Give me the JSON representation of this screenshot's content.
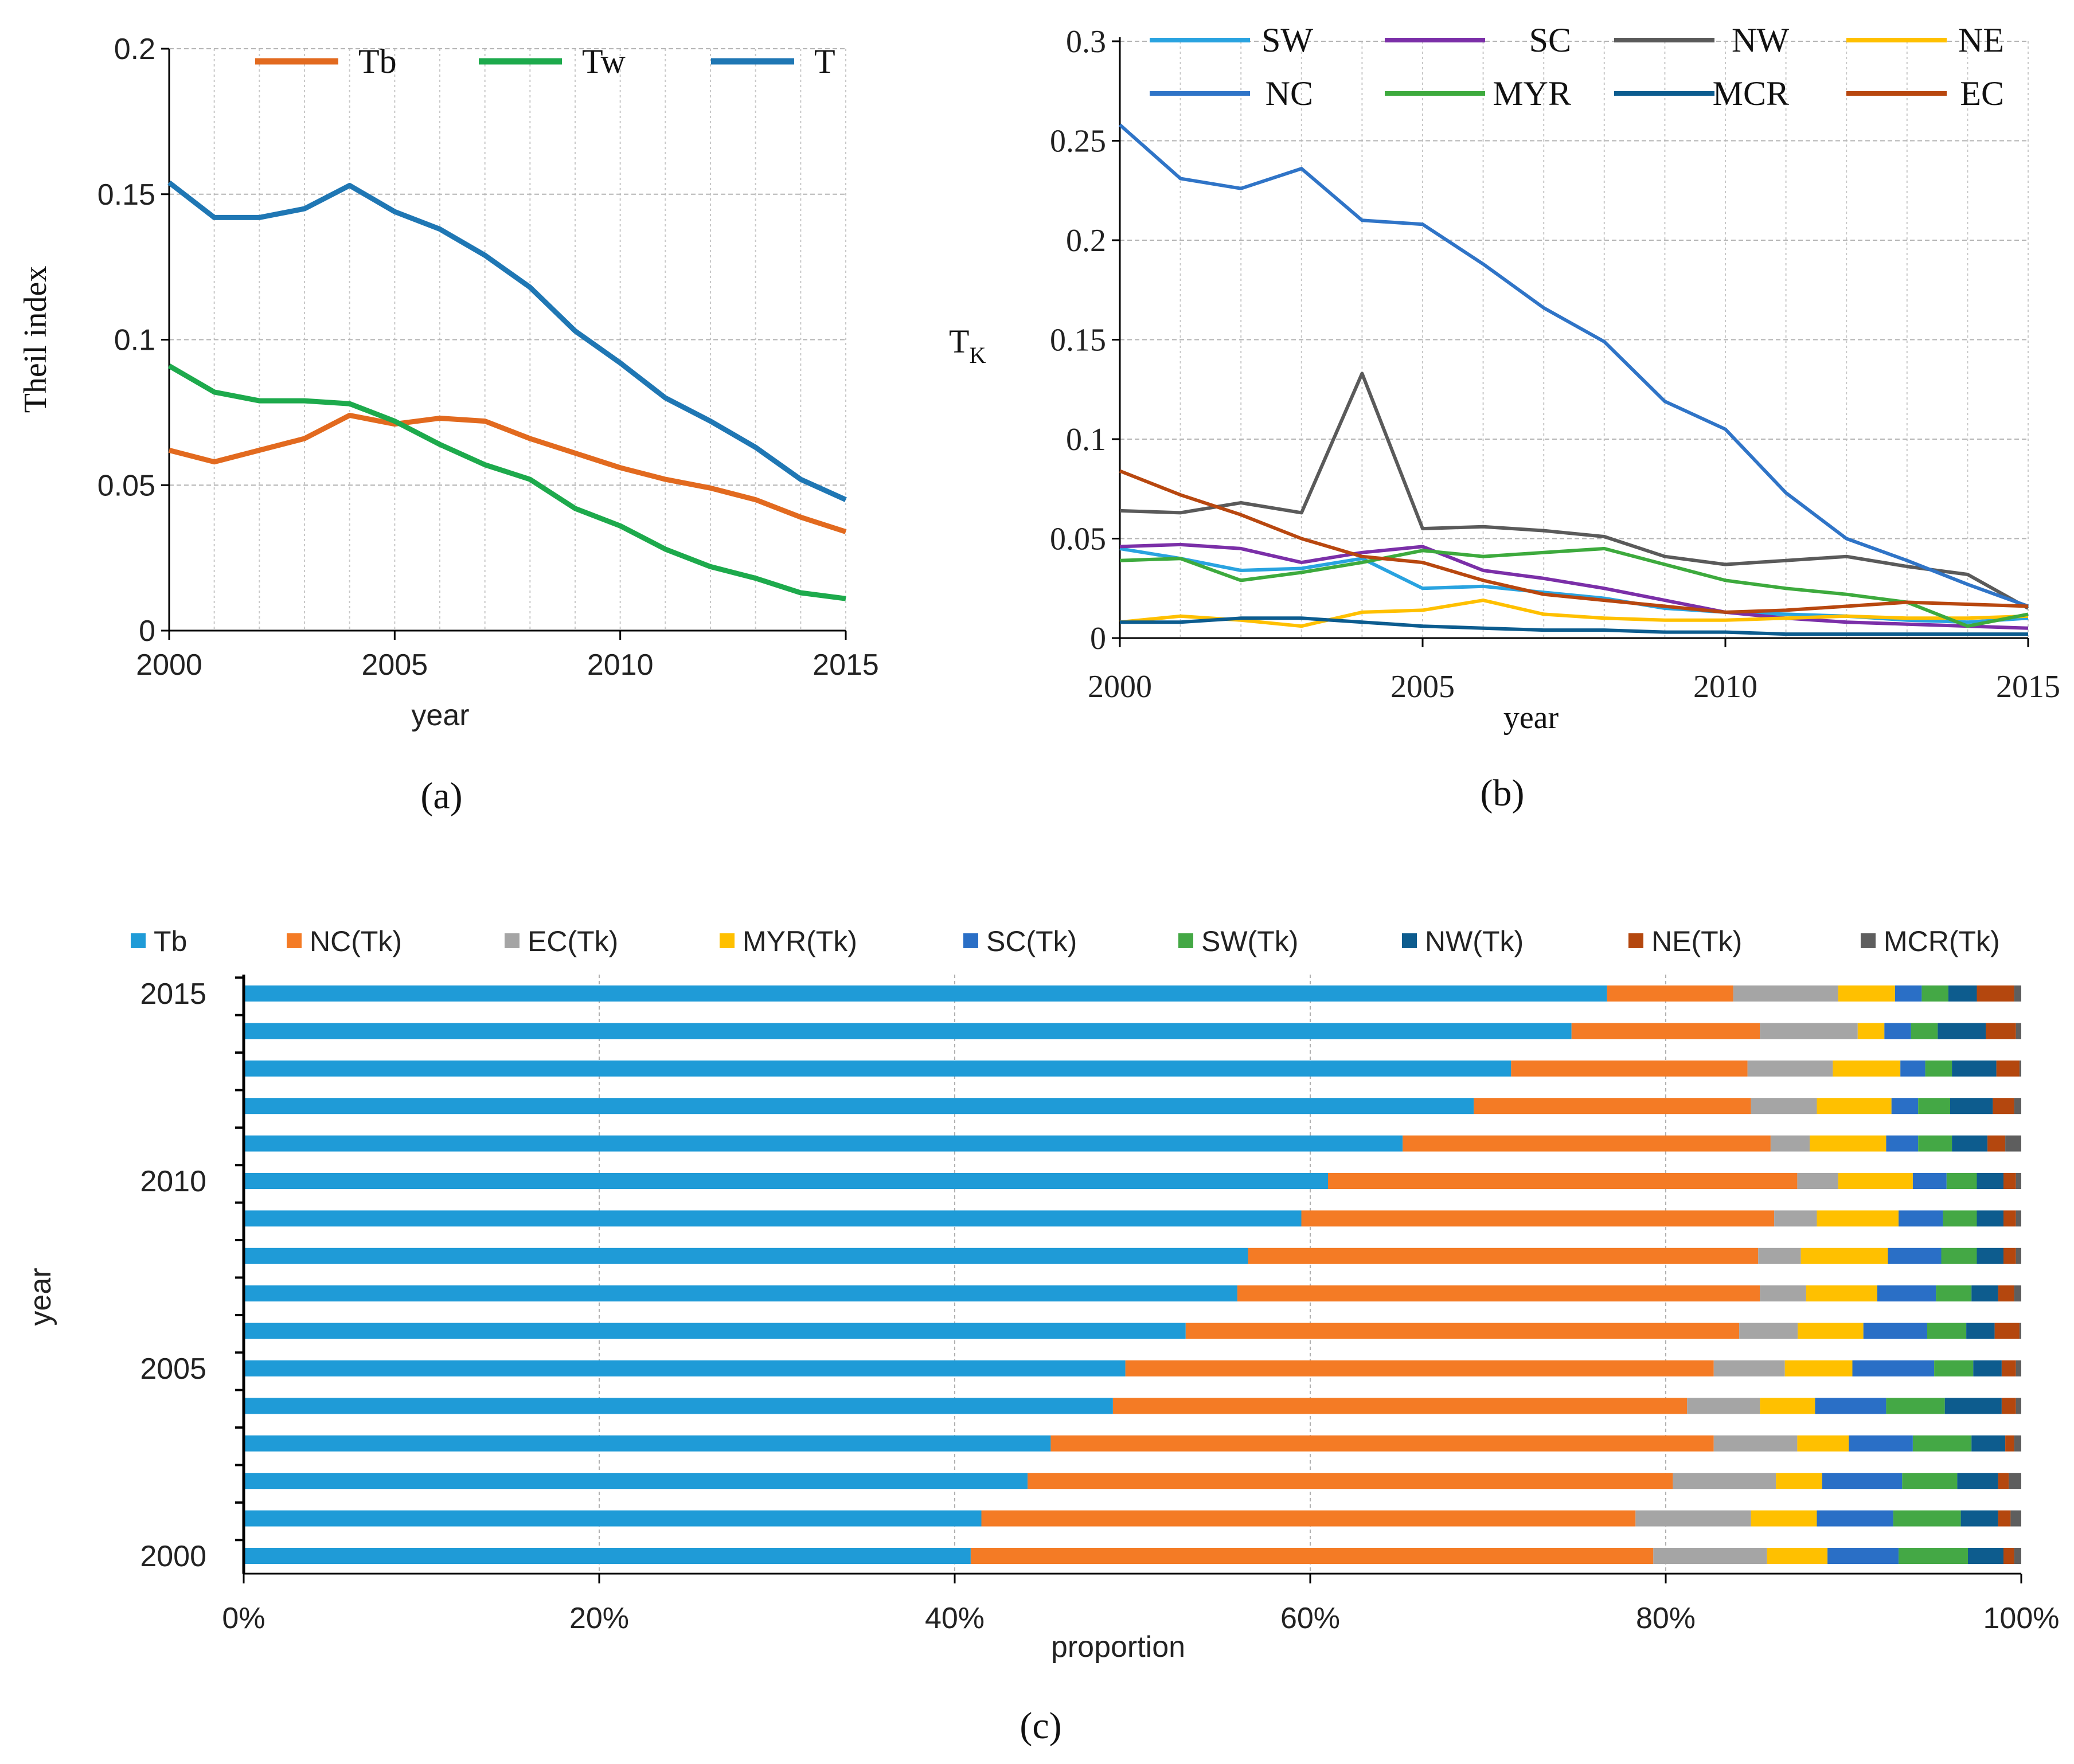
{
  "chart_data": [
    {
      "panel": "a",
      "type": "line",
      "panel_label": "(a)",
      "xlabel": "year",
      "ylabel": "Theil index",
      "xlim": [
        2000,
        2015
      ],
      "ylim": [
        0,
        0.2
      ],
      "x_ticks": [
        "2000",
        "2005",
        "2010",
        "2015"
      ],
      "y_ticks": [
        "0",
        "0.05",
        "0.1",
        "0.15",
        "0.2"
      ],
      "legend_position": "top",
      "x": [
        2000,
        2001,
        2002,
        2003,
        2004,
        2005,
        2006,
        2007,
        2008,
        2009,
        2010,
        2011,
        2012,
        2013,
        2014,
        2015
      ],
      "series": [
        {
          "name": "Tb",
          "color": "#E26A1F",
          "values": [
            0.062,
            0.058,
            0.062,
            0.066,
            0.074,
            0.071,
            0.073,
            0.072,
            0.066,
            0.061,
            0.056,
            0.052,
            0.049,
            0.045,
            0.039,
            0.034
          ]
        },
        {
          "name": "Tw",
          "color": "#1DAA4C",
          "values": [
            0.091,
            0.082,
            0.079,
            0.079,
            0.078,
            0.072,
            0.064,
            0.057,
            0.052,
            0.042,
            0.036,
            0.028,
            0.022,
            0.018,
            0.013,
            0.011
          ]
        },
        {
          "name": "T",
          "color": "#1F77B4",
          "values": [
            0.154,
            0.142,
            0.142,
            0.145,
            0.153,
            0.144,
            0.138,
            0.129,
            0.118,
            0.103,
            0.092,
            0.08,
            0.072,
            0.063,
            0.052,
            0.045
          ]
        }
      ]
    },
    {
      "panel": "b",
      "type": "line",
      "panel_label": "(b)",
      "xlabel": "year",
      "ylabel": "T",
      "ylabel_sub": "K",
      "xlim": [
        2000,
        2015
      ],
      "ylim": [
        0,
        0.3
      ],
      "x_ticks": [
        "2000",
        "2005",
        "2010",
        "2015"
      ],
      "y_ticks": [
        "0",
        "0.05",
        "0.1",
        "0.15",
        "0.2",
        "0.25",
        "0.3"
      ],
      "legend_position": "top",
      "x": [
        2000,
        2001,
        2002,
        2003,
        2004,
        2005,
        2006,
        2007,
        2008,
        2009,
        2010,
        2011,
        2012,
        2013,
        2014,
        2015
      ],
      "series": [
        {
          "name": "SW",
          "color": "#29A3E0",
          "values": [
            0.045,
            0.04,
            0.034,
            0.035,
            0.04,
            0.025,
            0.026,
            0.023,
            0.02,
            0.015,
            0.013,
            0.012,
            0.011,
            0.009,
            0.008,
            0.01
          ]
        },
        {
          "name": "SC",
          "color": "#7B2FA8",
          "values": [
            0.046,
            0.047,
            0.045,
            0.038,
            0.043,
            0.046,
            0.034,
            0.03,
            0.025,
            0.019,
            0.013,
            0.01,
            0.008,
            0.007,
            0.006,
            0.005
          ]
        },
        {
          "name": "NW",
          "color": "#5A5A5A",
          "values": [
            0.064,
            0.063,
            0.068,
            0.063,
            0.133,
            0.055,
            0.056,
            0.054,
            0.051,
            0.041,
            0.037,
            0.039,
            0.041,
            0.036,
            0.032,
            0.015
          ]
        },
        {
          "name": "NE",
          "color": "#FFC000",
          "values": [
            0.008,
            0.011,
            0.009,
            0.006,
            0.013,
            0.014,
            0.019,
            0.012,
            0.01,
            0.009,
            0.009,
            0.01,
            0.011,
            0.01,
            0.01,
            0.011
          ]
        },
        {
          "name": "NC",
          "color": "#2F74C7",
          "values": [
            0.258,
            0.231,
            0.226,
            0.236,
            0.21,
            0.208,
            0.188,
            0.166,
            0.149,
            0.119,
            0.105,
            0.073,
            0.05,
            0.039,
            0.027,
            0.016
          ]
        },
        {
          "name": "MYR",
          "color": "#3DAA3D",
          "values": [
            0.039,
            0.04,
            0.029,
            0.033,
            0.038,
            0.044,
            0.041,
            0.043,
            0.045,
            0.037,
            0.029,
            0.025,
            0.022,
            0.018,
            0.006,
            0.012
          ]
        },
        {
          "name": "MCR",
          "color": "#0C5C8F",
          "values": [
            0.008,
            0.008,
            0.01,
            0.01,
            0.008,
            0.006,
            0.005,
            0.004,
            0.004,
            0.003,
            0.003,
            0.002,
            0.002,
            0.002,
            0.002,
            0.002
          ]
        },
        {
          "name": "EC",
          "color": "#B8470F",
          "values": [
            0.084,
            0.072,
            0.062,
            0.05,
            0.041,
            0.038,
            0.029,
            0.022,
            0.019,
            0.016,
            0.013,
            0.014,
            0.016,
            0.018,
            0.017,
            0.016
          ]
        }
      ]
    },
    {
      "panel": "c",
      "type": "bar",
      "orientation": "horizontal",
      "stacked": "percent",
      "panel_label": "(c)",
      "xlabel": "proportion",
      "ylabel": "year",
      "x_ticks": [
        "0%",
        "20%",
        "40%",
        "60%",
        "80%",
        "100%"
      ],
      "y_tick_labels": [
        "2000",
        "2005",
        "2010",
        "2015"
      ],
      "legend_position": "top",
      "categories": [
        "2000",
        "2001",
        "2002",
        "2003",
        "2004",
        "2005",
        "2006",
        "2007",
        "2008",
        "2009",
        "2010",
        "2011",
        "2012",
        "2013",
        "2014",
        "2015"
      ],
      "series": [
        {
          "name": "Tb",
          "color": "#1F9BD7",
          "values": [
            40.9,
            41.5,
            44.1,
            45.4,
            48.9,
            49.6,
            53.1,
            55.9,
            56.5,
            59.5,
            61.0,
            65.2,
            69.2,
            71.3,
            74.7,
            76.7
          ]
        },
        {
          "name": "NC(Tk)",
          "color": "#F47B25",
          "values": [
            38.4,
            36.8,
            36.3,
            37.3,
            32.3,
            33.1,
            31.2,
            29.4,
            28.7,
            26.6,
            26.4,
            20.7,
            15.6,
            13.3,
            10.6,
            7.1
          ]
        },
        {
          "name": "EC(Tk)",
          "color": "#A5A5A5",
          "values": [
            6.4,
            6.5,
            5.8,
            4.7,
            4.1,
            4.0,
            3.3,
            2.6,
            2.4,
            2.4,
            2.3,
            2.2,
            3.7,
            4.8,
            5.5,
            5.9
          ]
        },
        {
          "name": "MYR(Tk)",
          "color": "#FFC000",
          "values": [
            3.4,
            3.7,
            2.6,
            2.9,
            3.1,
            3.8,
            3.7,
            4.0,
            4.9,
            4.6,
            4.2,
            4.3,
            4.2,
            3.8,
            1.5,
            3.2
          ]
        },
        {
          "name": "SC(Tk)",
          "color": "#2A6FC6",
          "values": [
            4.0,
            4.3,
            4.5,
            3.6,
            4.0,
            4.6,
            3.6,
            3.3,
            3.0,
            2.5,
            1.9,
            1.8,
            1.5,
            1.4,
            1.5,
            1.5
          ]
        },
        {
          "name": "SW(Tk)",
          "color": "#44A845",
          "values": [
            3.9,
            3.8,
            3.1,
            3.3,
            3.3,
            2.2,
            2.2,
            2.0,
            2.0,
            1.9,
            1.7,
            1.9,
            1.8,
            1.5,
            1.5,
            1.5
          ]
        },
        {
          "name": "NW(Tk)",
          "color": "#0D5C8E",
          "values": [
            2.0,
            2.1,
            2.3,
            1.9,
            3.2,
            1.6,
            1.6,
            1.5,
            1.5,
            1.5,
            1.5,
            2.0,
            2.4,
            2.5,
            2.7,
            1.6
          ]
        },
        {
          "name": "NE(Tk)",
          "color": "#B4470E",
          "values": [
            0.6,
            0.7,
            0.6,
            0.5,
            0.8,
            0.8,
            1.4,
            0.9,
            0.7,
            0.7,
            0.7,
            1.0,
            1.2,
            1.3,
            1.7,
            2.1
          ]
        },
        {
          "name": "MCR(Tk)",
          "color": "#5E5E5E",
          "values": [
            0.4,
            0.6,
            0.7,
            0.4,
            0.3,
            0.3,
            0.1,
            0.4,
            0.3,
            0.3,
            0.3,
            0.9,
            0.4,
            0.1,
            0.3,
            0.4
          ]
        }
      ]
    }
  ]
}
